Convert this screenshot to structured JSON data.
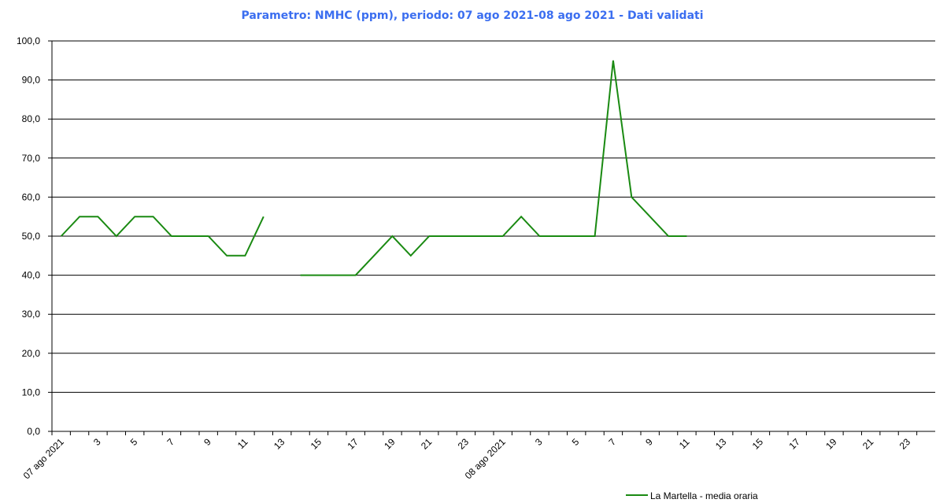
{
  "chart_data": {
    "type": "line",
    "title": "Parametro: NMHC (ppm), periodo: 07 ago 2021-08 ago 2021 - Dati validati",
    "categories": [
      "07 ago 2021",
      null,
      "3",
      null,
      "5",
      null,
      "7",
      null,
      "9",
      null,
      "11",
      null,
      "13",
      null,
      "15",
      null,
      "17",
      null,
      "19",
      null,
      "21",
      null,
      "23",
      null,
      "08 ago 2021",
      null,
      "3",
      null,
      "5",
      null,
      "7",
      null,
      "9",
      null,
      "11",
      null,
      "13",
      null,
      "15",
      null,
      "17",
      null,
      "19",
      null,
      "21",
      null,
      "23",
      null
    ],
    "series": [
      {
        "name": "La Martella - media oraria",
        "color": "#1a8a12",
        "values": [
          50,
          55,
          55,
          50,
          55,
          55,
          50,
          50,
          50,
          45,
          45,
          55,
          null,
          40,
          40,
          40,
          40,
          45,
          50,
          45,
          50,
          50,
          50,
          50,
          50,
          55,
          50,
          50,
          50,
          50,
          95,
          60,
          55,
          50,
          50,
          null,
          null,
          null,
          null,
          null,
          null,
          null,
          null,
          null,
          null,
          null,
          null,
          null
        ]
      }
    ],
    "ylim": [
      0,
      100
    ],
    "yticks": [
      {
        "value": 0,
        "label": "0,0"
      },
      {
        "value": 10,
        "label": "10,0"
      },
      {
        "value": 20,
        "label": "20,0"
      },
      {
        "value": 30,
        "label": "30,0"
      },
      {
        "value": 40,
        "label": "40,0"
      },
      {
        "value": 50,
        "label": "50,0"
      },
      {
        "value": 60,
        "label": "60,0"
      },
      {
        "value": 70,
        "label": "70,0"
      },
      {
        "value": 80,
        "label": "80,0"
      },
      {
        "value": 90,
        "label": "90,0"
      },
      {
        "value": 100,
        "label": "100,0"
      }
    ],
    "grid": true
  }
}
